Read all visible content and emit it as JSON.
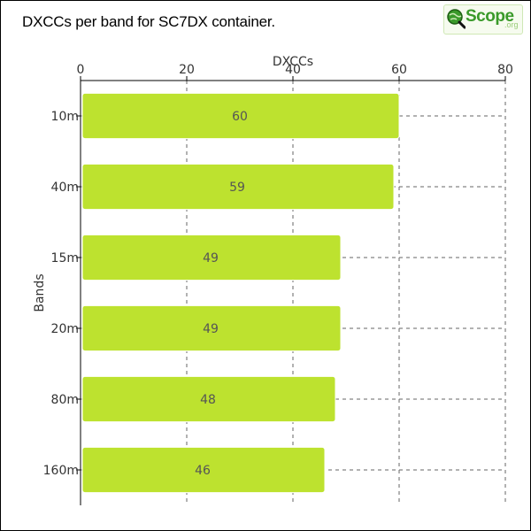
{
  "title": "DXCCs per band for SC7DX container.",
  "logo": {
    "text": "Scope",
    "tld": ".org"
  },
  "colors": {
    "bar": "#bde22f",
    "bar_stroke": "#ffffff",
    "axis": "#000000",
    "grid": "#666666",
    "text": "#333333",
    "label": "#555555"
  },
  "chart_data": {
    "type": "bar",
    "orientation": "horizontal",
    "xlabel": "DXCCs",
    "ylabel": "Bands",
    "categories": [
      "10m",
      "40m",
      "15m",
      "20m",
      "80m",
      "160m"
    ],
    "values": [
      60,
      59,
      49,
      49,
      48,
      46
    ],
    "xlim": [
      0,
      80
    ],
    "xticks": [
      0,
      20,
      40,
      60,
      80
    ],
    "x_axis_position": "top",
    "grid": true,
    "data_labels": true
  }
}
